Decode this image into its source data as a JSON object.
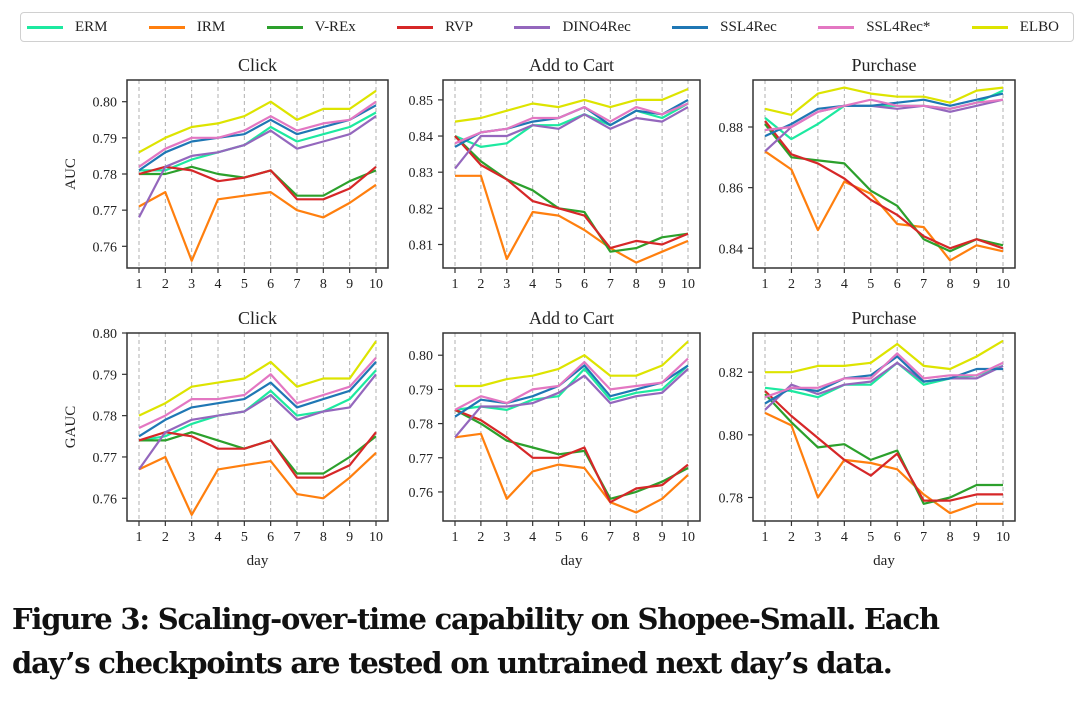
{
  "legend": [
    {
      "name": "ERM",
      "color": "#1de9a0"
    },
    {
      "name": "IRM",
      "color": "#ff7f0e"
    },
    {
      "name": "V-REx",
      "color": "#2ca02c"
    },
    {
      "name": "RVP",
      "color": "#d62728"
    },
    {
      "name": "DINO4Rec",
      "color": "#9467bd"
    },
    {
      "name": "SSL4Rec",
      "color": "#1f77b4"
    },
    {
      "name": "SSL4Rec*",
      "color": "#e377c2"
    },
    {
      "name": "ELBO",
      "color": "#dde400"
    }
  ],
  "caption": {
    "line1": "Figure 3: Scaling-over-time capability on Shopee-Small. Each",
    "line2": "day’s checkpoints are tested on untrained next day’s data."
  },
  "chart_data": [
    {
      "type": "line",
      "title": "Click",
      "xlabel": "",
      "ylabel": "AUC",
      "x": [
        1,
        2,
        3,
        4,
        5,
        6,
        7,
        8,
        9,
        10
      ],
      "ylim": [
        0.754,
        0.806
      ],
      "yticks": [
        0.76,
        0.77,
        0.78,
        0.79,
        0.8
      ],
      "ytick_labels": [
        "0.76",
        "0.77",
        "0.78",
        "0.79",
        "0.80"
      ],
      "grid": "vertical-dashed",
      "series": [
        {
          "name": "ERM",
          "values": [
            0.781,
            0.781,
            0.784,
            0.786,
            0.788,
            0.793,
            0.789,
            0.791,
            0.793,
            0.797
          ]
        },
        {
          "name": "IRM",
          "values": [
            0.771,
            0.775,
            0.756,
            0.773,
            0.774,
            0.775,
            0.77,
            0.768,
            0.772,
            0.777
          ]
        },
        {
          "name": "V-REx",
          "values": [
            0.78,
            0.78,
            0.782,
            0.78,
            0.779,
            0.781,
            0.774,
            0.774,
            0.778,
            0.781
          ]
        },
        {
          "name": "RVP",
          "values": [
            0.78,
            0.782,
            0.781,
            0.778,
            0.779,
            0.781,
            0.773,
            0.773,
            0.776,
            0.782
          ]
        },
        {
          "name": "DINO4Rec",
          "values": [
            0.768,
            0.782,
            0.785,
            0.786,
            0.788,
            0.792,
            0.787,
            0.789,
            0.791,
            0.796
          ]
        },
        {
          "name": "SSL4Rec",
          "values": [
            0.781,
            0.786,
            0.789,
            0.79,
            0.791,
            0.795,
            0.791,
            0.793,
            0.795,
            0.799
          ]
        },
        {
          "name": "SSL4Rec*",
          "values": [
            0.782,
            0.787,
            0.79,
            0.79,
            0.792,
            0.796,
            0.792,
            0.794,
            0.795,
            0.8
          ]
        },
        {
          "name": "ELBO",
          "values": [
            0.786,
            0.79,
            0.793,
            0.794,
            0.796,
            0.8,
            0.795,
            0.798,
            0.798,
            0.803
          ]
        }
      ]
    },
    {
      "type": "line",
      "title": "Add to Cart",
      "xlabel": "",
      "ylabel": "",
      "x": [
        1,
        2,
        3,
        4,
        5,
        6,
        7,
        8,
        9,
        10
      ],
      "ylim": [
        0.8035,
        0.8555
      ],
      "yticks": [
        0.81,
        0.82,
        0.83,
        0.84,
        0.85
      ],
      "ytick_labels": [
        "0.81",
        "0.82",
        "0.83",
        "0.84",
        "0.85"
      ],
      "grid": "vertical-dashed",
      "series": [
        {
          "name": "ERM",
          "values": [
            0.84,
            0.837,
            0.838,
            0.843,
            0.843,
            0.846,
            0.843,
            0.847,
            0.845,
            0.849
          ]
        },
        {
          "name": "IRM",
          "values": [
            0.829,
            0.829,
            0.806,
            0.819,
            0.818,
            0.814,
            0.809,
            0.805,
            0.808,
            0.811
          ]
        },
        {
          "name": "V-REx",
          "values": [
            0.84,
            0.833,
            0.828,
            0.825,
            0.82,
            0.819,
            0.808,
            0.809,
            0.812,
            0.813
          ]
        },
        {
          "name": "RVP",
          "values": [
            0.84,
            0.832,
            0.828,
            0.822,
            0.82,
            0.818,
            0.809,
            0.811,
            0.81,
            0.813
          ]
        },
        {
          "name": "DINO4Rec",
          "values": [
            0.831,
            0.84,
            0.84,
            0.843,
            0.842,
            0.846,
            0.842,
            0.845,
            0.844,
            0.848
          ]
        },
        {
          "name": "SSL4Rec",
          "values": [
            0.837,
            0.841,
            0.842,
            0.844,
            0.845,
            0.848,
            0.843,
            0.847,
            0.846,
            0.85
          ]
        },
        {
          "name": "SSL4Rec*",
          "values": [
            0.838,
            0.841,
            0.842,
            0.845,
            0.845,
            0.848,
            0.844,
            0.848,
            0.846,
            0.849
          ]
        },
        {
          "name": "ELBO",
          "values": [
            0.844,
            0.845,
            0.847,
            0.849,
            0.848,
            0.85,
            0.848,
            0.85,
            0.85,
            0.853
          ]
        }
      ]
    },
    {
      "type": "line",
      "title": "Purchase",
      "xlabel": "",
      "ylabel": "",
      "x": [
        1,
        2,
        3,
        4,
        5,
        6,
        7,
        8,
        9,
        10
      ],
      "ylim": [
        0.8335,
        0.8955
      ],
      "yticks": [
        0.84,
        0.86,
        0.88
      ],
      "ytick_labels": [
        "0.84",
        "0.86",
        "0.88"
      ],
      "grid": "vertical-dashed",
      "series": [
        {
          "name": "ERM",
          "values": [
            0.883,
            0.876,
            0.881,
            0.887,
            0.887,
            0.887,
            0.887,
            0.886,
            0.888,
            0.892
          ]
        },
        {
          "name": "IRM",
          "values": [
            0.872,
            0.866,
            0.846,
            0.862,
            0.858,
            0.848,
            0.847,
            0.836,
            0.841,
            0.839
          ]
        },
        {
          "name": "V-REx",
          "values": [
            0.881,
            0.87,
            0.869,
            0.868,
            0.859,
            0.854,
            0.843,
            0.839,
            0.843,
            0.841
          ]
        },
        {
          "name": "RVP",
          "values": [
            0.882,
            0.871,
            0.868,
            0.863,
            0.856,
            0.851,
            0.844,
            0.84,
            0.843,
            0.84
          ]
        },
        {
          "name": "DINO4Rec",
          "values": [
            0.872,
            0.88,
            0.885,
            0.887,
            0.887,
            0.886,
            0.887,
            0.885,
            0.887,
            0.889
          ]
        },
        {
          "name": "SSL4Rec",
          "values": [
            0.877,
            0.881,
            0.886,
            0.887,
            0.887,
            0.888,
            0.889,
            0.887,
            0.889,
            0.891
          ]
        },
        {
          "name": "SSL4Rec*",
          "values": [
            0.879,
            0.88,
            0.885,
            0.887,
            0.889,
            0.887,
            0.887,
            0.886,
            0.888,
            0.889
          ]
        },
        {
          "name": "ELBO",
          "values": [
            0.886,
            0.884,
            0.891,
            0.893,
            0.891,
            0.89,
            0.89,
            0.888,
            0.892,
            0.893
          ]
        }
      ]
    },
    {
      "type": "line",
      "title": "Click",
      "xlabel": "day",
      "ylabel": "GAUC",
      "x": [
        1,
        2,
        3,
        4,
        5,
        6,
        7,
        8,
        9,
        10
      ],
      "ylim": [
        0.7545,
        0.8
      ],
      "yticks": [
        0.76,
        0.77,
        0.78,
        0.79,
        0.8
      ],
      "ytick_labels": [
        "0.76",
        "0.77",
        "0.78",
        "0.79",
        "0.80"
      ],
      "grid": "vertical-dashed",
      "series": [
        {
          "name": "ERM",
          "values": [
            0.774,
            0.775,
            0.778,
            0.78,
            0.781,
            0.786,
            0.78,
            0.781,
            0.784,
            0.791
          ]
        },
        {
          "name": "IRM",
          "values": [
            0.767,
            0.77,
            0.756,
            0.767,
            0.768,
            0.769,
            0.761,
            0.76,
            0.765,
            0.771
          ]
        },
        {
          "name": "V-REx",
          "values": [
            0.774,
            0.774,
            0.776,
            0.774,
            0.772,
            0.774,
            0.766,
            0.766,
            0.77,
            0.775
          ]
        },
        {
          "name": "RVP",
          "values": [
            0.774,
            0.776,
            0.775,
            0.772,
            0.772,
            0.774,
            0.765,
            0.765,
            0.768,
            0.776
          ]
        },
        {
          "name": "DINO4Rec",
          "values": [
            0.767,
            0.776,
            0.779,
            0.78,
            0.781,
            0.785,
            0.779,
            0.781,
            0.782,
            0.79
          ]
        },
        {
          "name": "SSL4Rec",
          "values": [
            0.775,
            0.779,
            0.782,
            0.783,
            0.784,
            0.788,
            0.782,
            0.784,
            0.786,
            0.793
          ]
        },
        {
          "name": "SSL4Rec*",
          "values": [
            0.777,
            0.78,
            0.784,
            0.784,
            0.785,
            0.79,
            0.783,
            0.785,
            0.787,
            0.794
          ]
        },
        {
          "name": "ELBO",
          "values": [
            0.78,
            0.783,
            0.787,
            0.788,
            0.789,
            0.793,
            0.787,
            0.789,
            0.789,
            0.798
          ]
        }
      ]
    },
    {
      "type": "line",
      "title": "Add to Cart",
      "xlabel": "day",
      "ylabel": "",
      "x": [
        1,
        2,
        3,
        4,
        5,
        6,
        7,
        8,
        9,
        10
      ],
      "ylim": [
        0.7515,
        0.8065
      ],
      "yticks": [
        0.76,
        0.77,
        0.78,
        0.79,
        0.8
      ],
      "ytick_labels": [
        "0.76",
        "0.77",
        "0.78",
        "0.79",
        "0.80"
      ],
      "grid": "vertical-dashed",
      "series": [
        {
          "name": "ERM",
          "values": [
            0.784,
            0.785,
            0.784,
            0.787,
            0.788,
            0.796,
            0.787,
            0.789,
            0.79,
            0.797
          ]
        },
        {
          "name": "IRM",
          "values": [
            0.776,
            0.777,
            0.758,
            0.766,
            0.768,
            0.767,
            0.757,
            0.754,
            0.758,
            0.765
          ]
        },
        {
          "name": "V-REx",
          "values": [
            0.784,
            0.78,
            0.775,
            0.773,
            0.771,
            0.772,
            0.758,
            0.76,
            0.763,
            0.767
          ]
        },
        {
          "name": "RVP",
          "values": [
            0.784,
            0.781,
            0.776,
            0.77,
            0.77,
            0.773,
            0.757,
            0.761,
            0.762,
            0.768
          ]
        },
        {
          "name": "DINO4Rec",
          "values": [
            0.776,
            0.785,
            0.785,
            0.786,
            0.789,
            0.794,
            0.786,
            0.788,
            0.789,
            0.796
          ]
        },
        {
          "name": "SSL4Rec",
          "values": [
            0.782,
            0.787,
            0.786,
            0.788,
            0.791,
            0.797,
            0.788,
            0.79,
            0.792,
            0.797
          ]
        },
        {
          "name": "SSL4Rec*",
          "values": [
            0.784,
            0.788,
            0.786,
            0.79,
            0.791,
            0.798,
            0.79,
            0.791,
            0.792,
            0.799
          ]
        },
        {
          "name": "ELBO",
          "values": [
            0.791,
            0.791,
            0.793,
            0.794,
            0.796,
            0.8,
            0.794,
            0.794,
            0.797,
            0.804
          ]
        }
      ]
    },
    {
      "type": "line",
      "title": "Purchase",
      "xlabel": "day",
      "ylabel": "",
      "x": [
        1,
        2,
        3,
        4,
        5,
        6,
        7,
        8,
        9,
        10
      ],
      "ylim": [
        0.7725,
        0.8325
      ],
      "yticks": [
        0.78,
        0.8,
        0.82
      ],
      "ytick_labels": [
        "0.78",
        "0.80",
        "0.82"
      ],
      "grid": "vertical-dashed",
      "series": [
        {
          "name": "ERM",
          "values": [
            0.815,
            0.814,
            0.812,
            0.816,
            0.816,
            0.823,
            0.816,
            0.818,
            0.819,
            0.822
          ]
        },
        {
          "name": "IRM",
          "values": [
            0.807,
            0.803,
            0.78,
            0.792,
            0.791,
            0.789,
            0.781,
            0.775,
            0.778,
            0.778
          ]
        },
        {
          "name": "V-REx",
          "values": [
            0.813,
            0.804,
            0.796,
            0.797,
            0.792,
            0.795,
            0.778,
            0.78,
            0.784,
            0.784
          ]
        },
        {
          "name": "RVP",
          "values": [
            0.814,
            0.806,
            0.799,
            0.792,
            0.787,
            0.794,
            0.779,
            0.779,
            0.781,
            0.781
          ]
        },
        {
          "name": "DINO4Rec",
          "values": [
            0.808,
            0.816,
            0.813,
            0.816,
            0.817,
            0.823,
            0.817,
            0.818,
            0.818,
            0.822
          ]
        },
        {
          "name": "SSL4Rec",
          "values": [
            0.81,
            0.815,
            0.814,
            0.818,
            0.819,
            0.825,
            0.817,
            0.818,
            0.821,
            0.821
          ]
        },
        {
          "name": "SSL4Rec*",
          "values": [
            0.812,
            0.815,
            0.815,
            0.818,
            0.818,
            0.826,
            0.818,
            0.819,
            0.819,
            0.823
          ]
        },
        {
          "name": "ELBO",
          "values": [
            0.82,
            0.82,
            0.822,
            0.822,
            0.823,
            0.829,
            0.822,
            0.821,
            0.825,
            0.83
          ]
        }
      ]
    }
  ]
}
